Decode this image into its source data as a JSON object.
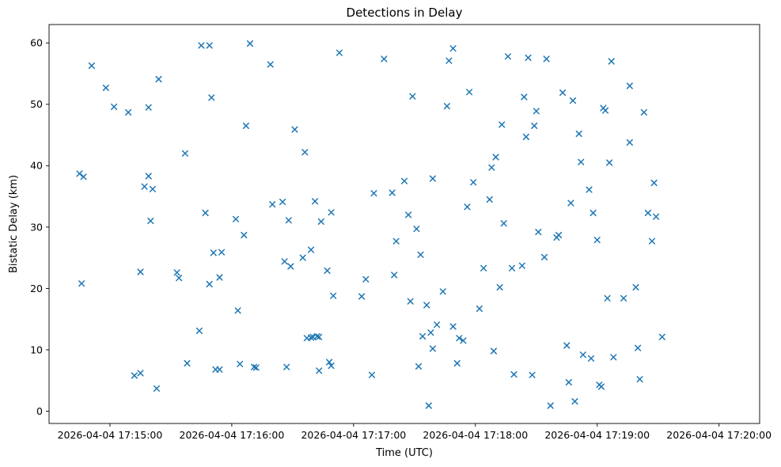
{
  "chart_data": {
    "type": "scatter",
    "title": "Detections in Delay",
    "xlabel": "Time (UTC)",
    "ylabel": "Bistatic Delay (km)",
    "marker": "x",
    "marker_color": "#1f77b4",
    "grid": false,
    "legend": null,
    "x_tick_labels": [
      "2026-04-04 17:15:00",
      "2026-04-04 17:16:00",
      "2026-04-04 17:17:00",
      "2026-04-04 17:18:00",
      "2026-04-04 17:19:00",
      "2026-04-04 17:20:00"
    ],
    "x_tick_seconds": [
      0,
      60,
      120,
      180,
      240,
      300
    ],
    "x_domain_seconds": [
      -30,
      320
    ],
    "y_ticks": [
      0,
      10,
      20,
      30,
      40,
      50,
      60
    ],
    "y_domain": [
      -2,
      63
    ],
    "x_unit": "seconds after 2026-04-04 17:15:00 UTC",
    "y_unit": "km",
    "points": [
      [
        -15,
        38.7
      ],
      [
        -14,
        20.8
      ],
      [
        -13,
        38.2
      ],
      [
        -9,
        56.3
      ],
      [
        -2,
        52.7
      ],
      [
        2,
        49.6
      ],
      [
        9,
        48.7
      ],
      [
        12,
        5.8
      ],
      [
        15,
        6.2
      ],
      [
        15,
        22.7
      ],
      [
        17,
        36.6
      ],
      [
        19,
        38.3
      ],
      [
        19,
        49.5
      ],
      [
        20,
        31.0
      ],
      [
        21,
        36.2
      ],
      [
        23,
        3.7
      ],
      [
        24,
        54.1
      ],
      [
        33,
        22.6
      ],
      [
        34,
        21.7
      ],
      [
        37,
        42.0
      ],
      [
        38,
        7.8
      ],
      [
        44,
        13.1
      ],
      [
        45,
        59.6
      ],
      [
        47,
        32.3
      ],
      [
        49,
        59.6
      ],
      [
        49,
        20.7
      ],
      [
        50,
        51.1
      ],
      [
        51,
        25.8
      ],
      [
        52,
        6.8
      ],
      [
        54,
        6.8
      ],
      [
        54,
        21.8
      ],
      [
        55,
        25.9
      ],
      [
        62,
        31.3
      ],
      [
        63,
        16.4
      ],
      [
        64,
        7.7
      ],
      [
        66,
        28.7
      ],
      [
        67,
        46.5
      ],
      [
        69,
        59.9
      ],
      [
        71,
        7.2
      ],
      [
        72,
        7.1
      ],
      [
        79,
        56.5
      ],
      [
        80,
        33.7
      ],
      [
        85,
        34.1
      ],
      [
        86,
        24.4
      ],
      [
        87,
        7.2
      ],
      [
        88,
        31.1
      ],
      [
        89,
        23.6
      ],
      [
        91,
        45.9
      ],
      [
        95,
        25.0
      ],
      [
        96,
        42.2
      ],
      [
        97,
        11.9
      ],
      [
        99,
        26.3
      ],
      [
        99,
        12.0
      ],
      [
        100,
        12.1
      ],
      [
        101,
        34.2
      ],
      [
        102,
        12.2
      ],
      [
        103,
        12.1
      ],
      [
        103,
        6.6
      ],
      [
        104,
        30.9
      ],
      [
        107,
        22.9
      ],
      [
        108,
        8.0
      ],
      [
        109,
        7.4
      ],
      [
        109,
        32.4
      ],
      [
        110,
        18.8
      ],
      [
        113,
        58.4
      ],
      [
        124,
        18.7
      ],
      [
        126,
        21.5
      ],
      [
        129,
        5.9
      ],
      [
        130,
        35.5
      ],
      [
        135,
        57.4
      ],
      [
        139,
        35.6
      ],
      [
        140,
        22.2
      ],
      [
        141,
        27.7
      ],
      [
        145,
        37.5
      ],
      [
        147,
        32.0
      ],
      [
        148,
        17.9
      ],
      [
        149,
        51.3
      ],
      [
        151,
        29.7
      ],
      [
        152,
        7.3
      ],
      [
        153,
        25.5
      ],
      [
        154,
        12.2
      ],
      [
        156,
        17.3
      ],
      [
        157,
        0.9
      ],
      [
        158,
        12.8
      ],
      [
        159,
        10.2
      ],
      [
        159,
        37.9
      ],
      [
        161,
        14.1
      ],
      [
        164,
        19.5
      ],
      [
        166,
        49.7
      ],
      [
        167,
        57.1
      ],
      [
        169,
        13.8
      ],
      [
        169,
        59.1
      ],
      [
        171,
        7.8
      ],
      [
        172,
        11.9
      ],
      [
        174,
        11.5
      ],
      [
        176,
        33.3
      ],
      [
        177,
        52.0
      ],
      [
        179,
        37.3
      ],
      [
        182,
        16.7
      ],
      [
        184,
        23.3
      ],
      [
        187,
        34.5
      ],
      [
        188,
        39.7
      ],
      [
        189,
        9.8
      ],
      [
        190,
        41.4
      ],
      [
        192,
        20.2
      ],
      [
        193,
        46.7
      ],
      [
        194,
        30.6
      ],
      [
        196,
        57.8
      ],
      [
        198,
        23.3
      ],
      [
        199,
        6.0
      ],
      [
        203,
        23.7
      ],
      [
        204,
        51.2
      ],
      [
        205,
        44.7
      ],
      [
        206,
        57.6
      ],
      [
        208,
        5.9
      ],
      [
        209,
        46.5
      ],
      [
        210,
        48.9
      ],
      [
        211,
        29.2
      ],
      [
        214,
        25.1
      ],
      [
        215,
        57.4
      ],
      [
        217,
        0.9
      ],
      [
        220,
        28.3
      ],
      [
        221,
        28.7
      ],
      [
        223,
        51.9
      ],
      [
        225,
        10.7
      ],
      [
        226,
        4.7
      ],
      [
        227,
        33.9
      ],
      [
        228,
        50.6
      ],
      [
        229,
        1.6
      ],
      [
        231,
        45.2
      ],
      [
        232,
        40.6
      ],
      [
        233,
        9.2
      ],
      [
        236,
        36.1
      ],
      [
        237,
        8.6
      ],
      [
        238,
        32.3
      ],
      [
        240,
        27.9
      ],
      [
        241,
        4.3
      ],
      [
        242,
        4.0
      ],
      [
        243,
        49.4
      ],
      [
        244,
        49.0
      ],
      [
        245,
        18.4
      ],
      [
        246,
        40.5
      ],
      [
        247,
        57.0
      ],
      [
        248,
        8.8
      ],
      [
        253,
        18.4
      ],
      [
        256,
        43.8
      ],
      [
        256,
        53.0
      ],
      [
        259,
        20.2
      ],
      [
        260,
        10.3
      ],
      [
        261,
        5.2
      ],
      [
        263,
        48.7
      ],
      [
        265,
        32.3
      ],
      [
        267,
        27.7
      ],
      [
        268,
        37.2
      ],
      [
        269,
        31.7
      ],
      [
        272,
        12.1
      ]
    ]
  }
}
